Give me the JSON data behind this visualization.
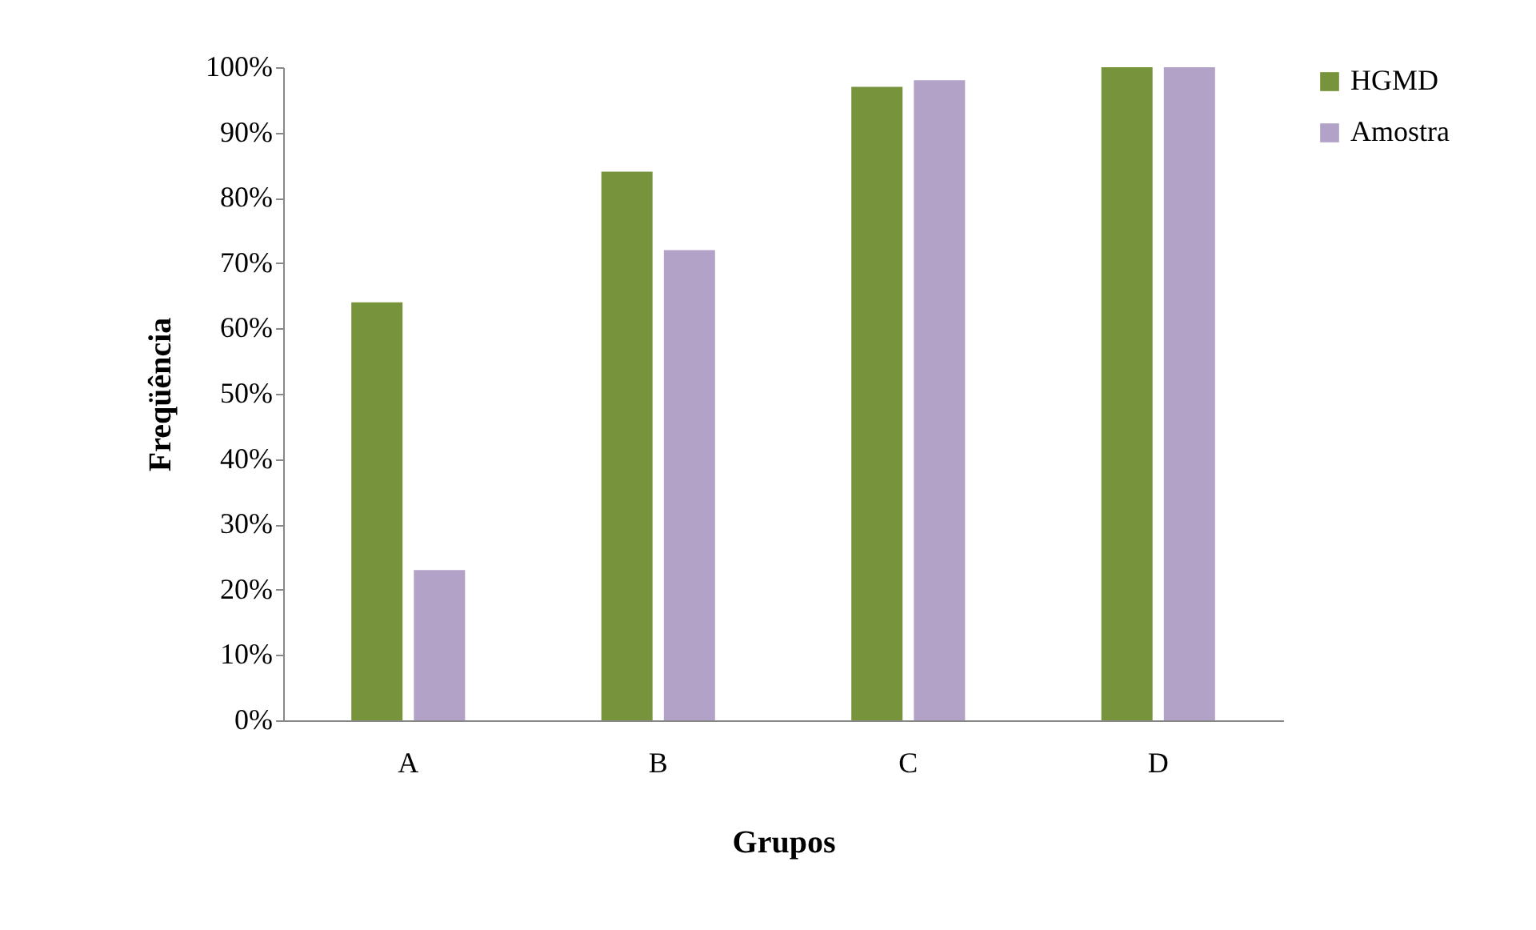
{
  "chart_data": {
    "type": "bar",
    "xlabel": "Grupos",
    "ylabel": "Freqüência",
    "categories": [
      "A",
      "B",
      "C",
      "D"
    ],
    "series": [
      {
        "name": "HGMD",
        "color": "#77933c",
        "values": [
          64,
          84,
          97,
          100
        ]
      },
      {
        "name": "Amostra",
        "color": "#b3a2c7",
        "values": [
          23,
          72,
          98,
          100
        ]
      }
    ],
    "ylim": [
      0,
      100
    ],
    "yticks": [
      {
        "value": 0,
        "label": "0%"
      },
      {
        "value": 10,
        "label": "10%"
      },
      {
        "value": 20,
        "label": "20%"
      },
      {
        "value": 30,
        "label": "30%"
      },
      {
        "value": 40,
        "label": "40%"
      },
      {
        "value": 50,
        "label": "50%"
      },
      {
        "value": 60,
        "label": "60%"
      },
      {
        "value": 70,
        "label": "70%"
      },
      {
        "value": 80,
        "label": "80%"
      },
      {
        "value": 90,
        "label": "90%"
      },
      {
        "value": 100,
        "label": "100%"
      }
    ],
    "grid": false,
    "legend": "right"
  }
}
